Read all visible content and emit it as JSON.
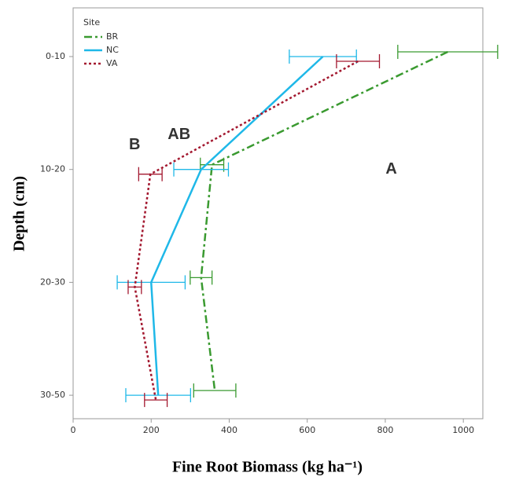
{
  "chart_data": {
    "type": "line",
    "orientation": "horizontal",
    "x_label": "Fine Root Biomass (kg ha⁻¹)",
    "y_label": "Depth (cm)",
    "legend_title": "Site",
    "legend_position": "upper left",
    "categories": [
      "0-10",
      "10-20",
      "20-30",
      "30-50"
    ],
    "xlim": [
      0,
      1050
    ],
    "xticks": [
      0,
      200,
      400,
      600,
      800,
      1000
    ],
    "series": [
      {
        "name": "BR",
        "color": "#3a9a30",
        "dash": "dashdot",
        "values": [
          960,
          356,
          328,
          363
        ],
        "errors": [
          128,
          30,
          28,
          54
        ],
        "annotation": "A",
        "annotation_color": "#2aa84a"
      },
      {
        "name": "NC",
        "color": "#1fb8e8",
        "dash": "solid",
        "values": [
          640,
          328,
          200,
          218
        ],
        "errors": [
          86,
          70,
          87,
          83
        ],
        "annotation": "AB",
        "annotation_color": "#22b5e8"
      },
      {
        "name": "VA",
        "color": "#a3182f",
        "dash": "dotted",
        "values": [
          730,
          198,
          158,
          212
        ],
        "errors": [
          55,
          30,
          17,
          29
        ],
        "annotation": "B",
        "annotation_color": "#b0101a"
      }
    ]
  }
}
